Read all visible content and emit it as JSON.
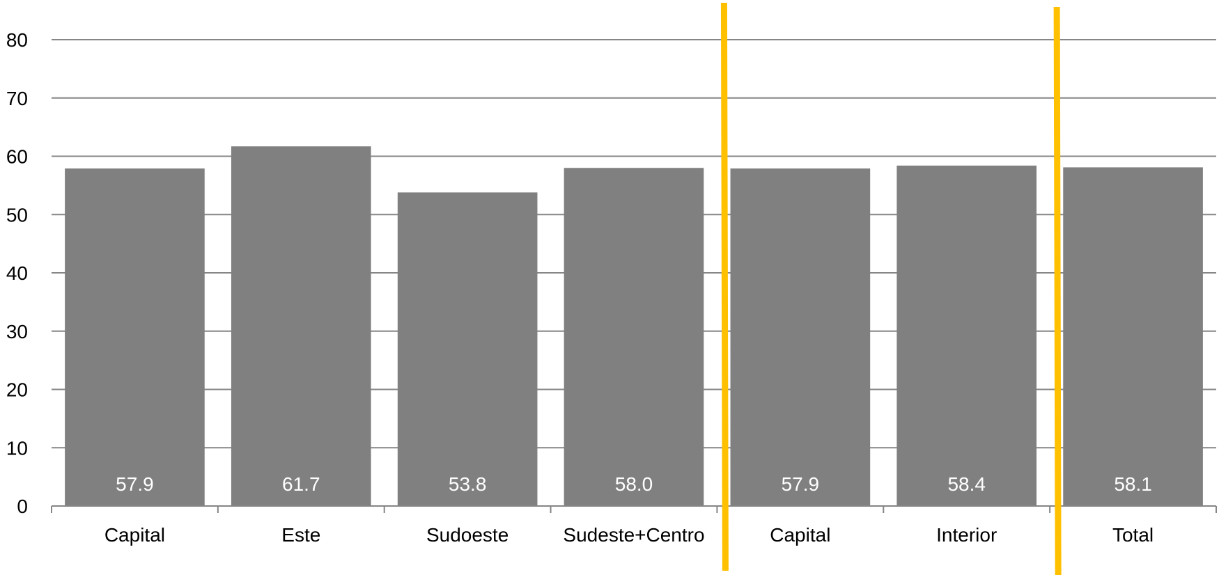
{
  "chart_data": {
    "type": "bar",
    "categories": [
      "Capital",
      "Este",
      "Sudoeste",
      "Sudeste+Centro",
      "Capital",
      "Interior",
      "Total"
    ],
    "values": [
      57.9,
      61.7,
      53.8,
      58.0,
      57.9,
      58.4,
      58.1
    ],
    "value_labels": [
      "57.9",
      "61.7",
      "53.8",
      "58.0",
      "57.9",
      "58.4",
      "58.1"
    ],
    "y_ticks": [
      "0",
      "10",
      "20",
      "30",
      "40",
      "50",
      "60",
      "70",
      "80"
    ],
    "ylim": [
      0,
      80
    ],
    "title": "",
    "xlabel": "",
    "ylabel": "",
    "grid": true,
    "separators_after_category_index": [
      3,
      5
    ],
    "colors": {
      "bar": "#808080",
      "grid": "#868686",
      "axis": "#868686",
      "separator": "#FFC000",
      "data_label": "#FFFFFF"
    }
  }
}
